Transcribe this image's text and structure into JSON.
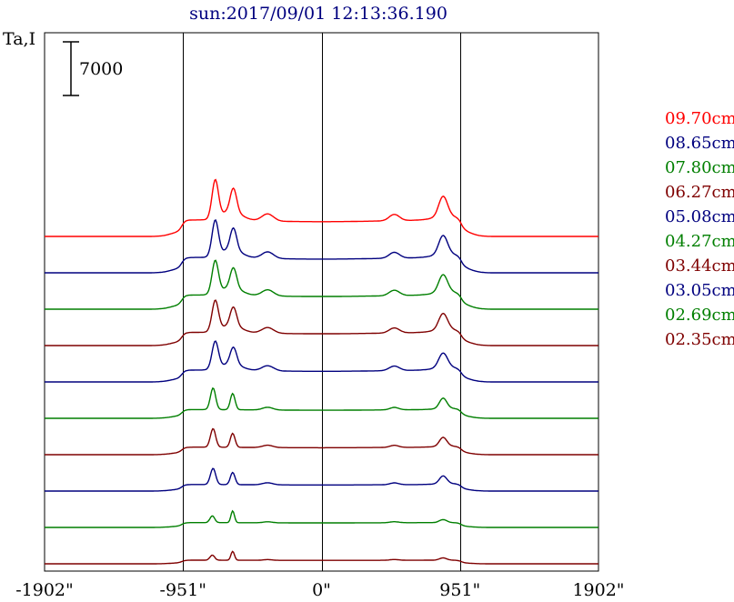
{
  "chart_data": {
    "type": "line",
    "title": "sun:2017/09/01 12:13:36.190",
    "ylabel": "Ta,I",
    "scale_bar_label": "7000",
    "scale_bar_value": 7000,
    "xlim": [
      -1902,
      1902
    ],
    "x_ticks": [
      {
        "value": -1902,
        "label": "-1902\""
      },
      {
        "value": -951,
        "label": "-951\""
      },
      {
        "value": 0,
        "label": "0\""
      },
      {
        "value": 951,
        "label": "951\""
      },
      {
        "value": 1902,
        "label": "1902\""
      }
    ],
    "vertical_lines": [
      -951,
      0,
      951
    ],
    "offset_step": 7000,
    "series": [
      {
        "name": "09.70cm",
        "color": "#ff0000",
        "amp": 1.0,
        "profile": "full"
      },
      {
        "name": "08.65cm",
        "color": "#00007f",
        "amp": 0.93,
        "profile": "full"
      },
      {
        "name": "07.80cm",
        "color": "#007f00",
        "amp": 0.86,
        "profile": "full"
      },
      {
        "name": "06.27cm",
        "color": "#7f0000",
        "amp": 0.8,
        "profile": "full"
      },
      {
        "name": "05.08cm",
        "color": "#00007f",
        "amp": 0.72,
        "profile": "full"
      },
      {
        "name": "04.27cm",
        "color": "#007f00",
        "amp": 0.64,
        "profile": "mid"
      },
      {
        "name": "03.44cm",
        "color": "#7f0000",
        "amp": 0.55,
        "profile": "mid"
      },
      {
        "name": "03.05cm",
        "color": "#00007f",
        "amp": 0.48,
        "profile": "mid"
      },
      {
        "name": "02.69cm",
        "color": "#007f00",
        "amp": 0.4,
        "profile": "low"
      },
      {
        "name": "02.35cm",
        "color": "#7f0000",
        "amp": 0.3,
        "profile": "low"
      }
    ]
  }
}
